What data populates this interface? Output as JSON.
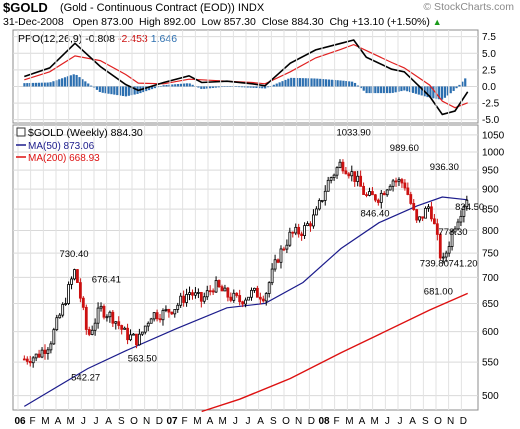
{
  "header": {
    "symbol": "$GOLD",
    "description": "(Gold - Continuous Contract (EOD))",
    "exchange": "INDX",
    "brand": "© StockCharts.com",
    "date": "31-Dec-2008",
    "open_label": "Open",
    "open": "873.00",
    "high_label": "High",
    "high": "892.00",
    "low_label": "Low",
    "low": "857.30",
    "close_label": "Close",
    "close": "884.30",
    "chg_label": "Chg",
    "chg": "+13.10 (+1.50%)",
    "chg_arrow": "▲"
  },
  "ppo_panel": {
    "title": "PPO(12,26,9)",
    "ppo_value": "-0.808",
    "signal_value": "-2.453",
    "hist_value": "1.646",
    "colors": {
      "ppo": "#000000",
      "signal": "#e02020",
      "hist": "#2c6fb0",
      "hist_value": "#2c6fb0"
    }
  },
  "price_panel": {
    "legend_title": "$GOLD (Weekly) 884.30",
    "ma50_label": "MA(50) 873.06",
    "ma200_label": "MA(200) 668.93",
    "colors": {
      "up": "#000000",
      "down": "#cc1111",
      "ma50": "#1c1c8c",
      "ma200": "#dd1111"
    }
  },
  "chart_data": {
    "type": "candlestick",
    "title": "$GOLD (Gold - Continuous Contract (EOD))",
    "frequency": "Weekly",
    "last_date": "31-Dec-2008",
    "quote": {
      "open": 873.0,
      "high": 892.0,
      "low": 857.3,
      "close": 884.3,
      "change": 13.1,
      "change_pct": 1.5
    },
    "y_scale": "log",
    "ylim": [
      480,
      1080
    ],
    "y_ticks": [
      500,
      550,
      600,
      650,
      700,
      750,
      800,
      850,
      900,
      950,
      1000,
      1050
    ],
    "x_ticks": [
      {
        "label": "06",
        "bold": true,
        "year": 2006.0
      },
      {
        "label": "F",
        "year": 2006.083
      },
      {
        "label": "M",
        "year": 2006.167
      },
      {
        "label": "A",
        "year": 2006.25
      },
      {
        "label": "M",
        "year": 2006.333
      },
      {
        "label": "J",
        "year": 2006.417
      },
      {
        "label": "J",
        "year": 2006.5
      },
      {
        "label": "A",
        "year": 2006.583
      },
      {
        "label": "S",
        "year": 2006.667
      },
      {
        "label": "O",
        "year": 2006.75
      },
      {
        "label": "N",
        "year": 2006.833
      },
      {
        "label": "D",
        "year": 2006.917
      },
      {
        "label": "07",
        "bold": true,
        "year": 2007.0
      },
      {
        "label": "F",
        "year": 2007.083
      },
      {
        "label": "M",
        "year": 2007.167
      },
      {
        "label": "A",
        "year": 2007.25
      },
      {
        "label": "M",
        "year": 2007.333
      },
      {
        "label": "J",
        "year": 2007.417
      },
      {
        "label": "J",
        "year": 2007.5
      },
      {
        "label": "A",
        "year": 2007.583
      },
      {
        "label": "S",
        "year": 2007.667
      },
      {
        "label": "O",
        "year": 2007.75
      },
      {
        "label": "N",
        "year": 2007.833
      },
      {
        "label": "D",
        "year": 2007.917
      },
      {
        "label": "08",
        "bold": true,
        "year": 2008.0
      },
      {
        "label": "F",
        "year": 2008.083
      },
      {
        "label": "M",
        "year": 2008.167
      },
      {
        "label": "A",
        "year": 2008.25
      },
      {
        "label": "M",
        "year": 2008.333
      },
      {
        "label": "J",
        "year": 2008.417
      },
      {
        "label": "J",
        "year": 2008.5
      },
      {
        "label": "A",
        "year": 2008.583
      },
      {
        "label": "S",
        "year": 2008.667
      },
      {
        "label": "O",
        "year": 2008.75
      },
      {
        "label": "N",
        "year": 2008.833
      },
      {
        "label": "D",
        "year": 2008.917
      }
    ],
    "close_path": [
      {
        "date": "2006-01",
        "value": 555
      },
      {
        "date": "2006-02",
        "value": 560
      },
      {
        "date": "2006-03",
        "value": 580
      },
      {
        "date": "2006-04",
        "value": 640
      },
      {
        "date": "2006-05",
        "value": 715
      },
      {
        "date": "2006-06",
        "value": 590
      },
      {
        "date": "2006-07",
        "value": 640
      },
      {
        "date": "2006-08",
        "value": 625
      },
      {
        "date": "2006-09",
        "value": 595
      },
      {
        "date": "2006-10",
        "value": 585
      },
      {
        "date": "2006-11",
        "value": 630
      },
      {
        "date": "2006-12",
        "value": 632
      },
      {
        "date": "2007-01",
        "value": 645
      },
      {
        "date": "2007-02",
        "value": 672
      },
      {
        "date": "2007-03",
        "value": 655
      },
      {
        "date": "2007-04",
        "value": 685
      },
      {
        "date": "2007-05",
        "value": 665
      },
      {
        "date": "2007-06",
        "value": 655
      },
      {
        "date": "2007-07",
        "value": 670
      },
      {
        "date": "2007-08",
        "value": 665
      },
      {
        "date": "2007-09",
        "value": 740
      },
      {
        "date": "2007-10",
        "value": 790
      },
      {
        "date": "2007-11",
        "value": 800
      },
      {
        "date": "2007-12",
        "value": 835
      },
      {
        "date": "2008-01",
        "value": 920
      },
      {
        "date": "2008-02",
        "value": 970
      },
      {
        "date": "2008-03",
        "value": 935
      },
      {
        "date": "2008-04",
        "value": 880
      },
      {
        "date": "2008-05",
        "value": 880
      },
      {
        "date": "2008-06",
        "value": 925
      },
      {
        "date": "2008-07",
        "value": 915
      },
      {
        "date": "2008-08",
        "value": 815
      },
      {
        "date": "2008-09",
        "value": 860
      },
      {
        "date": "2008-10",
        "value": 725
      },
      {
        "date": "2008-11",
        "value": 815
      },
      {
        "date": "2008-12",
        "value": 884.3
      }
    ],
    "ma50": [
      {
        "date": "2006-01",
        "value": 485
      },
      {
        "date": "2006-06",
        "value": 540
      },
      {
        "date": "2006-09",
        "value": 568
      },
      {
        "date": "2007-01",
        "value": 605
      },
      {
        "date": "2007-05",
        "value": 642
      },
      {
        "date": "2007-08",
        "value": 650
      },
      {
        "date": "2007-11",
        "value": 690
      },
      {
        "date": "2008-02",
        "value": 760
      },
      {
        "date": "2008-05",
        "value": 818
      },
      {
        "date": "2008-08",
        "value": 858
      },
      {
        "date": "2008-10",
        "value": 880
      },
      {
        "date": "2008-12",
        "value": 873.06
      }
    ],
    "ma200": [
      {
        "date": "2007-03",
        "value": 478
      },
      {
        "date": "2007-06",
        "value": 495
      },
      {
        "date": "2007-10",
        "value": 525
      },
      {
        "date": "2008-02",
        "value": 565
      },
      {
        "date": "2008-05",
        "value": 595
      },
      {
        "date": "2008-09",
        "value": 638
      },
      {
        "date": "2008-12",
        "value": 668.93
      }
    ],
    "annotations": [
      {
        "text": "730.40",
        "date": "2006-05"
      },
      {
        "text": "676.41",
        "date": "2006-07"
      },
      {
        "text": "542.27",
        "date": "2006-06"
      },
      {
        "text": "563.50",
        "date": "2006-10"
      },
      {
        "text": "1033.90",
        "date": "2008-03"
      },
      {
        "text": "989.60",
        "date": "2008-07"
      },
      {
        "text": "846.40",
        "date": "2008-05"
      },
      {
        "text": "936.30",
        "date": "2008-10"
      },
      {
        "text": "834.50",
        "date": "2008-12"
      },
      {
        "text": "778.30",
        "date": "2008-11"
      },
      {
        "text": "739.80",
        "date": "2008-10"
      },
      {
        "text": "741.20",
        "date": "2008-11"
      },
      {
        "text": "681.00",
        "date": "2008-10"
      }
    ],
    "ppo_y_ticks": [
      7.5,
      5.0,
      2.5,
      0.0,
      -2.5,
      -5.0
    ],
    "ppo_ylim": [
      -5.5,
      8.5
    ],
    "ppo": [
      {
        "date": "2006-01",
        "value": 1.5
      },
      {
        "date": "2006-03",
        "value": 2.8
      },
      {
        "date": "2006-05",
        "value": 6.5
      },
      {
        "date": "2006-07",
        "value": 3.0
      },
      {
        "date": "2006-09",
        "value": 0.3
      },
      {
        "date": "2006-10",
        "value": -0.6
      },
      {
        "date": "2006-12",
        "value": 0.6
      },
      {
        "date": "2007-02",
        "value": 1.6
      },
      {
        "date": "2007-03",
        "value": 0.6
      },
      {
        "date": "2007-05",
        "value": 0.8
      },
      {
        "date": "2007-07",
        "value": 0.4
      },
      {
        "date": "2007-08",
        "value": 0.1
      },
      {
        "date": "2007-10",
        "value": 3.5
      },
      {
        "date": "2007-12",
        "value": 5.5
      },
      {
        "date": "2008-02",
        "value": 6.5
      },
      {
        "date": "2008-03",
        "value": 7.0
      },
      {
        "date": "2008-04",
        "value": 4.4
      },
      {
        "date": "2008-06",
        "value": 2.6
      },
      {
        "date": "2008-07",
        "value": 2.2
      },
      {
        "date": "2008-09",
        "value": -1.5
      },
      {
        "date": "2008-10",
        "value": -4.2
      },
      {
        "date": "2008-11",
        "value": -3.7
      },
      {
        "date": "2008-12",
        "value": -0.808
      }
    ],
    "ppo_signal": [
      {
        "date": "2006-01",
        "value": 1.0
      },
      {
        "date": "2006-03",
        "value": 2.2
      },
      {
        "date": "2006-05",
        "value": 4.6
      },
      {
        "date": "2006-07",
        "value": 3.9
      },
      {
        "date": "2006-09",
        "value": 1.8
      },
      {
        "date": "2006-10",
        "value": 0.5
      },
      {
        "date": "2006-12",
        "value": 0.4
      },
      {
        "date": "2007-02",
        "value": 1.1
      },
      {
        "date": "2007-03",
        "value": 1.0
      },
      {
        "date": "2007-05",
        "value": 0.8
      },
      {
        "date": "2007-07",
        "value": 0.6
      },
      {
        "date": "2007-08",
        "value": 0.4
      },
      {
        "date": "2007-10",
        "value": 2.2
      },
      {
        "date": "2007-12",
        "value": 4.3
      },
      {
        "date": "2008-02",
        "value": 5.6
      },
      {
        "date": "2008-03",
        "value": 6.3
      },
      {
        "date": "2008-04",
        "value": 5.4
      },
      {
        "date": "2008-06",
        "value": 3.6
      },
      {
        "date": "2008-07",
        "value": 2.8
      },
      {
        "date": "2008-09",
        "value": 0.2
      },
      {
        "date": "2008-10",
        "value": -2.2
      },
      {
        "date": "2008-11",
        "value": -3.2
      },
      {
        "date": "2008-12",
        "value": -2.453
      }
    ]
  }
}
